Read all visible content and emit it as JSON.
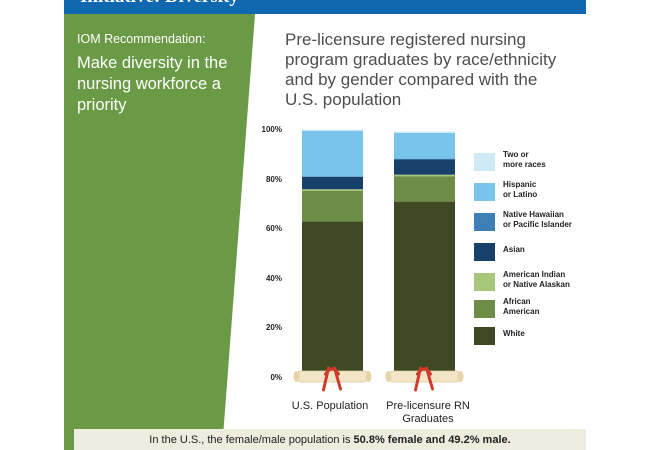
{
  "header": {
    "title": "Initiative: Diversity"
  },
  "sidebar": {
    "recommendation_label": "IOM Recommendation:",
    "recommendation_text": "Make diversity in the nursing workforce a priority"
  },
  "colors": {
    "green_panel": "#6a9a45",
    "header_blue": "#0f68b0",
    "footer_bg": "#ececdf",
    "two_or_more": "#cfe9f7",
    "hispanic": "#79c4ea",
    "native_hawaiian": "#3f7fb8",
    "asian": "#17406b",
    "american_indian": "#a9c77a",
    "african_american": "#6d8c46",
    "white": "#3f4a25",
    "scroll": "#f3e6c8",
    "ribbon": "#d23a2b"
  },
  "chart_data": {
    "type": "bar",
    "stacked": true,
    "title": "Pre-licensure registered nursing program graduates by race/ethnicity and by gender compared with the U.S. population",
    "xlabel": "",
    "ylabel": "",
    "ylim": [
      0,
      100
    ],
    "yticks": [
      "100%",
      "80%",
      "60%",
      "40%",
      "20%",
      "0%"
    ],
    "categories": [
      "U.S. Population",
      "Pre-licensure RN Graduates"
    ],
    "series": [
      {
        "name": "White",
        "values": [
          62.6,
          70.6
        ]
      },
      {
        "name": "African American",
        "values": [
          12.3,
          10.3
        ]
      },
      {
        "name": "American Indian or Native Alaskan",
        "values": [
          0.7,
          0.6
        ]
      },
      {
        "name": "Asian",
        "values": [
          5.0,
          6.2
        ]
      },
      {
        "name": "Native Hawaiian or Pacific Islander",
        "values": [
          0.2,
          0.3
        ]
      },
      {
        "name": "Hispanic or Latino",
        "values": [
          18.5,
          10.4
        ]
      },
      {
        "name": "Two or more races",
        "values": [
          0.4,
          0.6
        ]
      }
    ],
    "legend_position": "right",
    "grid": false
  },
  "legend": {
    "items": [
      {
        "name": "Two or more races",
        "line1": "Two or",
        "line2": "more races",
        "color": "#cfe9f7"
      },
      {
        "name": "Hispanic or Latino",
        "line1": "Hispanic",
        "line2": "or Latino",
        "color": "#79c4ea"
      },
      {
        "name": "Native Hawaiian or Pacific Islander",
        "line1": "Native Hawaiian",
        "line2": "or Pacific Islander",
        "color": "#3f7fb8"
      },
      {
        "name": "Asian",
        "line1": "Asian",
        "line2": "",
        "color": "#17406b"
      },
      {
        "name": "American Indian or Native Alaskan",
        "line1": "American Indian",
        "line2": "or Native Alaskan",
        "color": "#a9c77a"
      },
      {
        "name": "African American",
        "line1": "African",
        "line2": "American",
        "color": "#6d8c46"
      },
      {
        "name": "White",
        "line1": "White",
        "line2": "",
        "color": "#3f4a25"
      }
    ]
  },
  "xaxis": {
    "label_us": "U.S. Population",
    "label_rn_line1": "Pre-licensure RN",
    "label_rn_line2": "Graduates"
  },
  "footer": {
    "text_prefix": "In the U.S., the female/male population is ",
    "text_bold": "50.8% female and 49.2% male."
  }
}
